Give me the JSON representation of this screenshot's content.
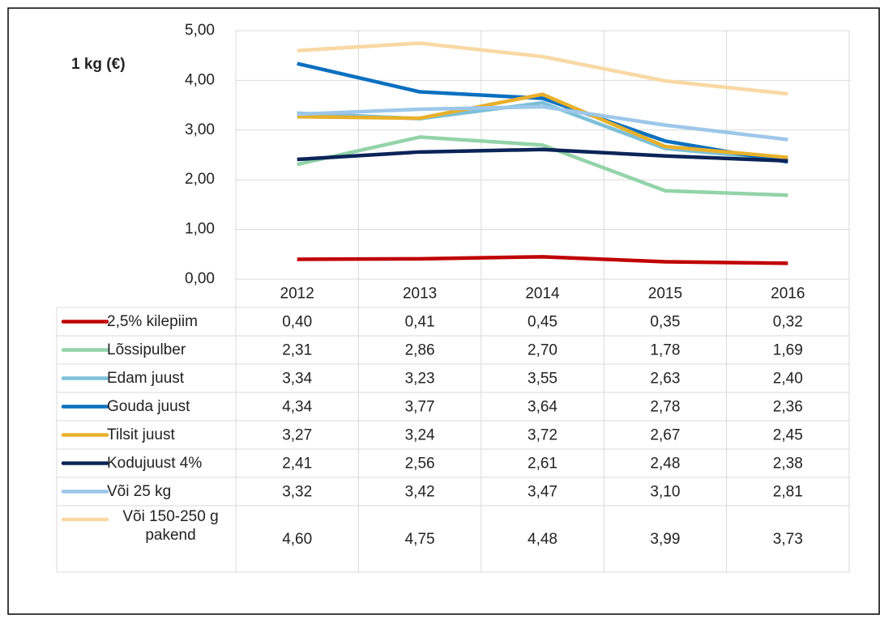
{
  "chart_data": {
    "type": "line",
    "ylabel": "1 kg (€)",
    "categories": [
      "2012",
      "2013",
      "2014",
      "2015",
      "2016"
    ],
    "ylim": [
      0,
      5
    ],
    "yticks": [
      {
        "value": 0,
        "label": "0,00"
      },
      {
        "value": 1,
        "label": "1,00"
      },
      {
        "value": 2,
        "label": "2,00"
      },
      {
        "value": 3,
        "label": "3,00"
      },
      {
        "value": 4,
        "label": "4,00"
      },
      {
        "value": 5,
        "label": "5,00"
      }
    ],
    "grid": true,
    "series": [
      {
        "name": "2,5% kilepiim",
        "color": "#c00000",
        "values": [
          0.4,
          0.41,
          0.45,
          0.35,
          0.32
        ],
        "value_labels": [
          "0,40",
          "0,41",
          "0,45",
          "0,35",
          "0,32"
        ]
      },
      {
        "name": "Lõssipulber",
        "color": "#93d3a8",
        "values": [
          2.31,
          2.86,
          2.7,
          1.78,
          1.69
        ],
        "value_labels": [
          "2,31",
          "2,86",
          "2,70",
          "1,78",
          "1,69"
        ]
      },
      {
        "name": "Edam juust",
        "color": "#7cc0d8",
        "values": [
          3.34,
          3.23,
          3.55,
          2.63,
          2.4
        ],
        "value_labels": [
          "3,34",
          "3,23",
          "3,55",
          "2,63",
          "2,40"
        ]
      },
      {
        "name": "Gouda juust",
        "color": "#0a70c0",
        "values": [
          4.34,
          3.77,
          3.64,
          2.78,
          2.36
        ],
        "value_labels": [
          "4,34",
          "3,77",
          "3,64",
          "2,78",
          "2,36"
        ]
      },
      {
        "name": "Tilsit juust",
        "color": "#e8b02a",
        "values": [
          3.27,
          3.24,
          3.72,
          2.67,
          2.45
        ],
        "value_labels": [
          "3,27",
          "3,24",
          "3,72",
          "2,67",
          "2,45"
        ]
      },
      {
        "name": "Kodujuust 4%",
        "color": "#0b2458",
        "values": [
          2.41,
          2.56,
          2.61,
          2.48,
          2.38
        ],
        "value_labels": [
          "2,41",
          "2,56",
          "2,61",
          "2,48",
          "2,38"
        ]
      },
      {
        "name": "Või 25 kg",
        "color": "#9dc7ea",
        "values": [
          3.32,
          3.42,
          3.47,
          3.1,
          2.81
        ],
        "value_labels": [
          "3,32",
          "3,42",
          "3,47",
          "3,10",
          "2,81"
        ]
      },
      {
        "name": "Või 150-250 g pakend",
        "color": "#f9d8a4",
        "values": [
          4.6,
          4.75,
          4.48,
          3.99,
          3.73
        ],
        "value_labels": [
          "4,60",
          "4,75",
          "4,48",
          "3,99",
          "3,73"
        ]
      }
    ]
  }
}
